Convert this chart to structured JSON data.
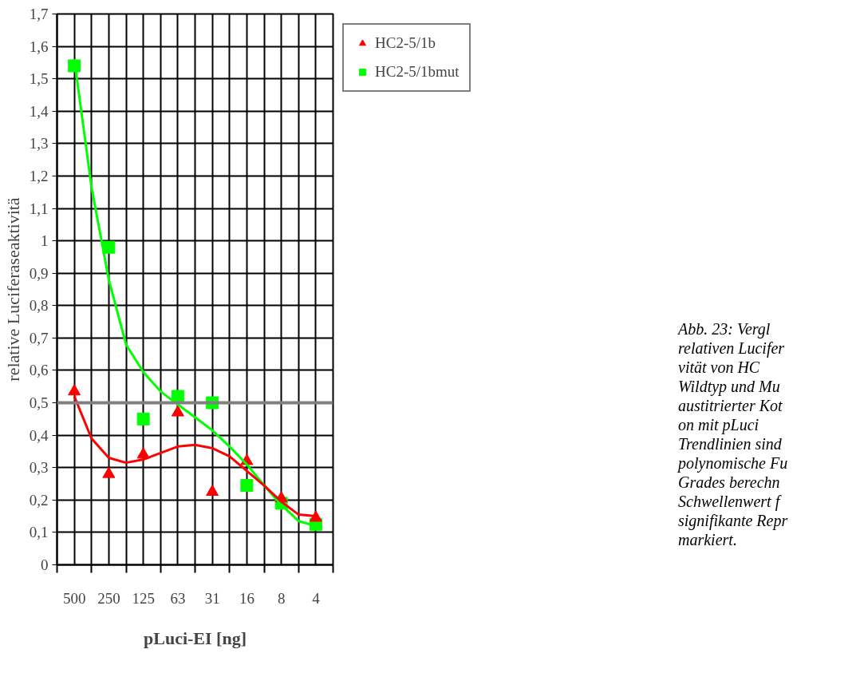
{
  "chart_data": {
    "type": "scatter",
    "xlabel": "pLuci-EI [ng]",
    "ylabel": "relative Luciferaseaktivitä",
    "categories": [
      "500",
      null,
      "250",
      null,
      "125",
      null,
      "63",
      null,
      "31",
      null,
      "16",
      null,
      "8",
      null,
      "4"
    ],
    "ylim": [
      0,
      1.7
    ],
    "yticks": [
      0,
      {
        "value": 0.1,
        "label": "0,1"
      },
      {
        "value": 0.2,
        "label": "0,2"
      },
      {
        "value": 0.3,
        "label": "0,3"
      },
      {
        "value": 0.4,
        "label": "0,4"
      },
      {
        "value": 0.5,
        "label": "0,5"
      },
      {
        "value": 0.6,
        "label": "0,6"
      },
      {
        "value": 0.7,
        "label": "0,7"
      },
      {
        "value": 0.8,
        "label": "0,8"
      },
      {
        "value": 0.9,
        "label": "0,9"
      },
      1,
      {
        "value": 1.1,
        "label": "1,1"
      },
      {
        "value": 1.2,
        "label": "1,2"
      },
      {
        "value": 1.3,
        "label": "1,3"
      },
      {
        "value": 1.4,
        "label": "1,4"
      },
      {
        "value": 1.5,
        "label": "1,5"
      },
      {
        "value": 1.6,
        "label": "1,6"
      },
      {
        "value": 1.7,
        "label": "1,7"
      }
    ],
    "grid": true,
    "legend": "top right",
    "series": [
      {
        "name": "HC2-5/1b",
        "color": "#ff0000",
        "marker": "triangle",
        "values": [
          0.535,
          null,
          0.28,
          null,
          0.34,
          null,
          0.47,
          null,
          0.225,
          null,
          0.32,
          null,
          0.205,
          null,
          0.145
        ]
      },
      {
        "name": "HC2-5/1bmut",
        "color": "#00ff00",
        "marker": "square",
        "values": [
          1.54,
          null,
          0.98,
          null,
          0.45,
          null,
          0.52,
          null,
          0.5,
          null,
          0.245,
          null,
          0.19,
          null,
          0.125
        ]
      },
      {
        "type": "line",
        "color": "#ff0000",
        "values": [
          0.52,
          0.39,
          0.33,
          0.315,
          0.325,
          0.345,
          0.365,
          0.37,
          0.36,
          0.335,
          0.29,
          0.245,
          0.195,
          0.155,
          0.15
        ]
      },
      {
        "type": "line",
        "color": "#00ff00",
        "values": [
          1.56,
          1.165,
          0.88,
          0.68,
          0.595,
          0.535,
          0.495,
          0.455,
          0.415,
          0.365,
          0.31,
          0.245,
          0.185,
          0.135,
          0.12
        ]
      }
    ],
    "ref_lines": [
      {
        "axis": "y",
        "value": 0.5,
        "color": "#808080"
      }
    ],
    "annotations": [
      "Abb. 23: Vergl\nrelativen Lucifer\nvität von HC\nWildtyp und Mu\naustitrierter Kot\non mit pLuci\nTrendlinien sind\npolynomische Fu\nGrades berechn\nSchwellenwert f\nsignifikante Repr\nmarkiert."
    ]
  }
}
